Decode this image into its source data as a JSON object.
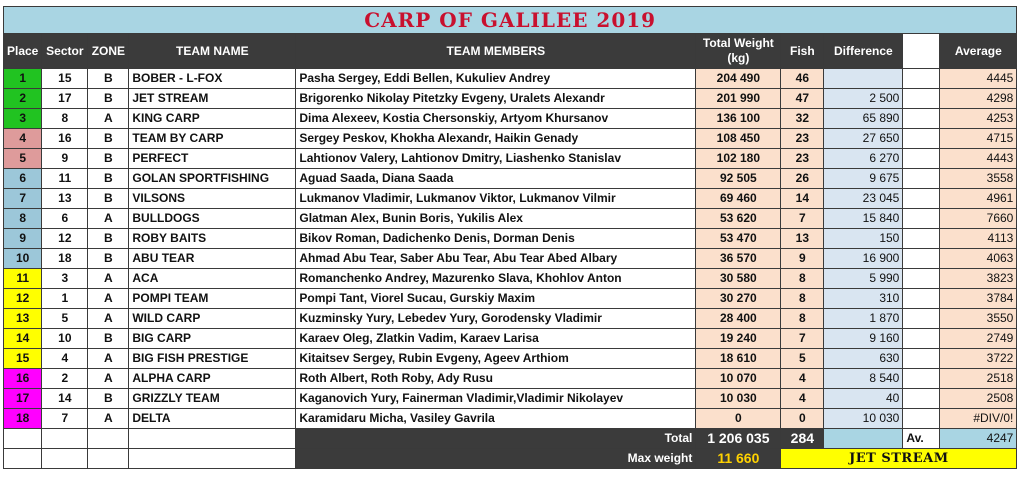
{
  "title": "CARP OF GALILEE 2019",
  "headers": {
    "place": "Place",
    "sector": "Sector",
    "zone": "ZONE",
    "team_name": "TEAM NAME",
    "team_members": "TEAM MEMBERS",
    "total_weight": "Total Weight (kg)",
    "fish": "Fish",
    "difference": "Difference",
    "average": "Average"
  },
  "place_colors": {
    "green": "#21c321",
    "pink": "#de9b9b",
    "blue": "#9cc7d9",
    "yellow": "#ffff00",
    "magenta": "#ff00ff"
  },
  "rows": [
    {
      "place": "1",
      "sector": "15",
      "zone": "B",
      "team": "BOBER - L-FOX",
      "members": "Pasha Sergey, Eddi Bellen, Kukuliev Andrey",
      "weight": "204 490",
      "fish": "46",
      "difference": "",
      "average": "4445",
      "color": "green"
    },
    {
      "place": "2",
      "sector": "17",
      "zone": "B",
      "team": "JET STREAM",
      "members": "Brigorenko Nikolay Pitetzky Evgeny, Uralets Alexandr",
      "weight": "201 990",
      "fish": "47",
      "difference": "2 500",
      "average": "4298",
      "color": "green"
    },
    {
      "place": "3",
      "sector": "8",
      "zone": "A",
      "team": "KING CARP",
      "members": "Dima Alexeev, Kostia Chersonskiy, Artyom Khursanov",
      "weight": "136 100",
      "fish": "32",
      "difference": "65 890",
      "average": "4253",
      "color": "green"
    },
    {
      "place": "4",
      "sector": "16",
      "zone": "B",
      "team": "TEAM BY CARP",
      "members": "Sergey Peskov, Khokha Alexandr, Haikin Genady",
      "weight": "108 450",
      "fish": "23",
      "difference": "27 650",
      "average": "4715",
      "color": "pink"
    },
    {
      "place": "5",
      "sector": "9",
      "zone": "B",
      "team": "PERFECT",
      "members": "Lahtionov Valery, Lahtionov Dmitry, Liashenko Stanislav",
      "weight": "102 180",
      "fish": "23",
      "difference": "6 270",
      "average": "4443",
      "color": "pink"
    },
    {
      "place": "6",
      "sector": "11",
      "zone": "B",
      "team": "GOLAN SPORTFISHING",
      "members": "Aguad Saada, Diana Saada",
      "weight": "92 505",
      "fish": "26",
      "difference": "9 675",
      "average": "3558",
      "color": "blue"
    },
    {
      "place": "7",
      "sector": "13",
      "zone": "B",
      "team": "VILSONS",
      "members": "Lukmanov Vladimir, Lukmanov Viktor, Lukmanov Vilmir",
      "weight": "69 460",
      "fish": "14",
      "difference": "23 045",
      "average": "4961",
      "color": "blue"
    },
    {
      "place": "8",
      "sector": "6",
      "zone": "A",
      "team": "BULLDOGS",
      "members": "Glatman Alex, Bunin Boris, Yukilis Alex",
      "weight": "53 620",
      "fish": "7",
      "difference": "15 840",
      "average": "7660",
      "color": "blue"
    },
    {
      "place": "9",
      "sector": "12",
      "zone": "B",
      "team": "ROBY BAITS",
      "members": "Bikov Roman, Dadichenko Denis, Dorman Denis",
      "weight": "53 470",
      "fish": "13",
      "difference": "150",
      "average": "4113",
      "color": "blue"
    },
    {
      "place": "10",
      "sector": "18",
      "zone": "B",
      "team": "ABU TEAR",
      "members": "Ahmad Abu Tear, Saber Abu Tear, Abu Tear Abed Albary",
      "weight": "36 570",
      "fish": "9",
      "difference": "16 900",
      "average": "4063",
      "color": "blue"
    },
    {
      "place": "11",
      "sector": "3",
      "zone": "A",
      "team": "ACA",
      "members": "Romanchenko Andrey, Mazurenko Slava, Khohlov Anton",
      "weight": "30 580",
      "fish": "8",
      "difference": "5 990",
      "average": "3823",
      "color": "yellow"
    },
    {
      "place": "12",
      "sector": "1",
      "zone": "A",
      "team": "POMPI TEAM",
      "members": "Pompi Tant, Viorel Sucau, Gurskiy Maxim",
      "weight": "30 270",
      "fish": "8",
      "difference": "310",
      "average": "3784",
      "color": "yellow"
    },
    {
      "place": "13",
      "sector": "5",
      "zone": "A",
      "team": "WILD CARP",
      "members": "Kuzminsky Yury, Lebedev Yury, Gorodensky Vladimir",
      "weight": "28 400",
      "fish": "8",
      "difference": "1 870",
      "average": "3550",
      "color": "yellow"
    },
    {
      "place": "14",
      "sector": "10",
      "zone": "B",
      "team": "BIG CARP",
      "members": "Karaev Oleg, Zlatkin Vadim, Karaev Larisa",
      "weight": "19 240",
      "fish": "7",
      "difference": "9 160",
      "average": "2749",
      "color": "yellow"
    },
    {
      "place": "15",
      "sector": "4",
      "zone": "A",
      "team": "BIG FISH PRESTIGE",
      "members": "Kitaitsev Sergey, Rubin Evgeny, Ageev Arthiom",
      "weight": "18 610",
      "fish": "5",
      "difference": "630",
      "average": "3722",
      "color": "yellow"
    },
    {
      "place": "16",
      "sector": "2",
      "zone": "A",
      "team": "ALPHA CARP",
      "members": "Roth Albert, Roth Roby, Ady Rusu",
      "weight": "10 070",
      "fish": "4",
      "difference": "8 540",
      "average": "2518",
      "color": "magenta"
    },
    {
      "place": "17",
      "sector": "14",
      "zone": "B",
      "team": "GRIZZLY TEAM",
      "members": "Kaganovich Yury, Fainerman Vladimir,Vladimir Nikolayev",
      "weight": "10 030",
      "fish": "4",
      "difference": "40",
      "average": "2508",
      "color": "magenta"
    },
    {
      "place": "18",
      "sector": "7",
      "zone": "A",
      "team": "DELTA",
      "members": "Karamidaru Micha, Vasiley Gavrila",
      "weight": "0",
      "fish": "0",
      "difference": "10 030",
      "average": "#DIV/0!",
      "color": "magenta"
    }
  ],
  "totals": {
    "label": "Total",
    "weight": "1 206 035",
    "fish": "284",
    "avg_label": "Av.",
    "average": "4247"
  },
  "max_weight": {
    "label": "Max weight",
    "value": "11 660",
    "team": "JET STREAM"
  }
}
